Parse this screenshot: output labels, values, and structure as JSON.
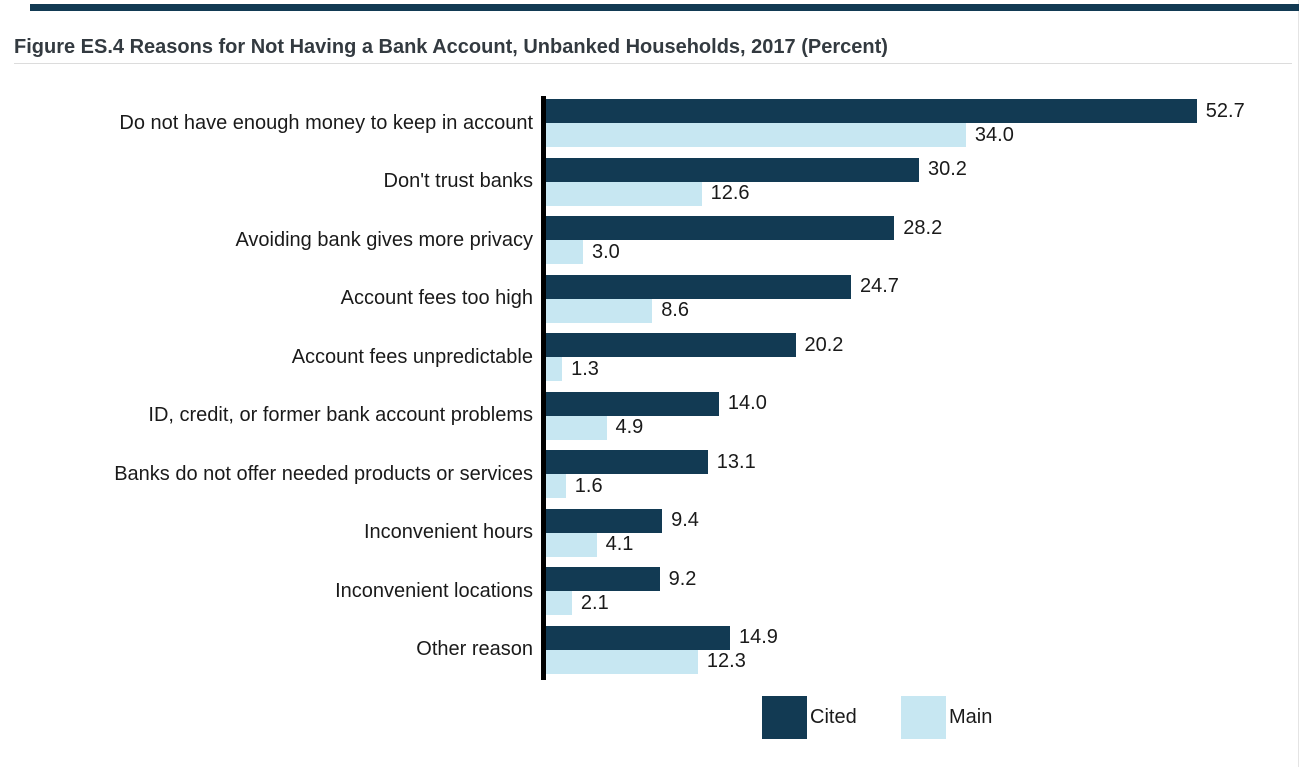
{
  "page": {
    "accent_bar_color": "#123a53"
  },
  "chart_data": {
    "type": "bar",
    "orientation": "horizontal",
    "title": "Figure ES.4 Reasons for Not Having a Bank Account, Unbanked Households, 2017 (Percent)",
    "unit": "percent",
    "categories": [
      "Do not have enough money to keep in account",
      "Don't trust banks",
      "Avoiding bank gives more privacy",
      "Account fees too high",
      "Account fees unpredictable",
      "ID, credit, or former bank account problems",
      "Banks do not offer needed products or services",
      "Inconvenient hours",
      "Inconvenient locations",
      "Other reason"
    ],
    "series": [
      {
        "name": "Cited",
        "color": "#123a53",
        "values": [
          52.7,
          30.2,
          28.2,
          24.7,
          20.2,
          14.0,
          13.1,
          9.4,
          9.2,
          14.9
        ]
      },
      {
        "name": "Main",
        "color": "#c7e7f2",
        "values": [
          34.0,
          12.6,
          3.0,
          8.6,
          1.3,
          4.9,
          1.6,
          4.1,
          2.1,
          12.3
        ]
      }
    ],
    "value_label_format": "one_decimal",
    "xlim": [
      0,
      55
    ],
    "grid": false,
    "axis_line_color": "#000000",
    "legend_position": "bottom-right"
  }
}
